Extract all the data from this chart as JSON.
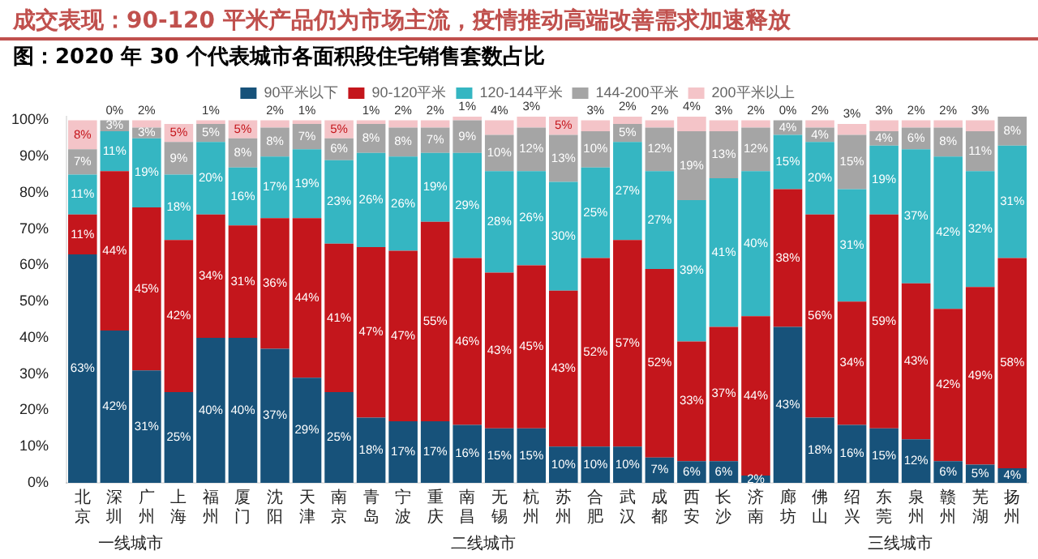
{
  "chart_data": {
    "type": "bar",
    "stacked": true,
    "title": "成交表现：90-120 平米产品仍为市场主流，疫情推动高端改善需求加速释放",
    "subtitle": "图：2020 年 30 个代表城市各面积段住宅销售套数占比",
    "categories": [
      "北京",
      "深圳",
      "广州",
      "上海",
      "福州",
      "厦门",
      "沈阳",
      "天津",
      "南京",
      "青岛",
      "宁波",
      "重庆",
      "南昌",
      "无锡",
      "杭州",
      "苏州",
      "合肥",
      "武汉",
      "成都",
      "西安",
      "长沙",
      "济南",
      "廊坊",
      "佛山",
      "绍兴",
      "东莞",
      "泉州",
      "赣州",
      "芜湖",
      "扬州"
    ],
    "series": [
      {
        "name": "90平米以下",
        "color": "#17527a",
        "values": [
          63,
          42,
          31,
          25,
          40,
          40,
          37,
          29,
          25,
          18,
          17,
          17,
          16,
          15,
          15,
          10,
          10,
          10,
          7,
          6,
          6,
          2,
          43,
          18,
          16,
          15,
          12,
          6,
          5,
          4
        ],
        "value_labels": [
          "63%",
          "42%",
          "31%",
          "25%",
          "40%",
          "40%",
          "37%",
          "29%",
          "25%",
          "18%",
          "17%",
          "17%",
          "16%",
          "15%",
          "15%",
          "10%",
          "10%",
          "10%",
          "7%",
          "6%",
          "6%",
          "2%",
          "43%",
          "18%",
          "16%",
          "15%",
          "12%",
          "6%",
          "5%",
          "4%"
        ]
      },
      {
        "name": "90-120平米",
        "color": "#c4161c",
        "values": [
          11,
          44,
          45,
          42,
          34,
          31,
          36,
          44,
          41,
          47,
          47,
          55,
          46,
          43,
          45,
          43,
          52,
          57,
          52,
          33,
          37,
          44,
          38,
          56,
          34,
          59,
          43,
          42,
          49,
          58
        ],
        "value_labels": [
          "11%",
          "44%",
          "45%",
          "42%",
          "34%",
          "31%",
          "36%",
          "44%",
          "41%",
          "47%",
          "47%",
          "55%",
          "46%",
          "43%",
          "45%",
          "43%",
          "52%",
          "57%",
          "52%",
          "33%",
          "37%",
          "44%",
          "38%",
          "56%",
          "34%",
          "59%",
          "43%",
          "42%",
          "49%",
          "58%"
        ]
      },
      {
        "name": "120-144平米",
        "color": "#35b6c2",
        "values": [
          11,
          11,
          19,
          18,
          20,
          16,
          17,
          19,
          23,
          26,
          26,
          19,
          29,
          28,
          26,
          30,
          25,
          27,
          27,
          39,
          41,
          40,
          15,
          20,
          31,
          19,
          37,
          42,
          32,
          31
        ],
        "value_labels": [
          "11%",
          "11%",
          "19%",
          "18%",
          "20%",
          "16%",
          "17%",
          "19%",
          "23%",
          "26%",
          "26%",
          "19%",
          "29%",
          "28%",
          "26%",
          "30%",
          "25%",
          "27%",
          "27%",
          "39%",
          "41%",
          "40%",
          "15%",
          "20%",
          "31%",
          "19%",
          "37%",
          "42%",
          "32%",
          "31%"
        ]
      },
      {
        "name": "144-200平米",
        "color": "#a5a5a5",
        "values": [
          7,
          3,
          3,
          9,
          5,
          8,
          8,
          7,
          6,
          8,
          8,
          7,
          9,
          10,
          12,
          13,
          10,
          5,
          12,
          19,
          13,
          12,
          4,
          4,
          15,
          4,
          6,
          8,
          11,
          8
        ],
        "value_labels": [
          "7%",
          "3%",
          "3%",
          "9%",
          "5%",
          "8%",
          "8%",
          "7%",
          "6%",
          "8%",
          "8%",
          "7%",
          "9%",
          "10%",
          "12%",
          "13%",
          "10%",
          "5%",
          "12%",
          "19%",
          "13%",
          "12%",
          "4%",
          "4%",
          "15%",
          "4%",
          "6%",
          "8%",
          "11%",
          "8%"
        ]
      },
      {
        "name": "200平米以上",
        "color": "#f4c4c8",
        "values": [
          8,
          0,
          2,
          5,
          1,
          5,
          2,
          1,
          5,
          1,
          2,
          2,
          1,
          4,
          3,
          5,
          3,
          2,
          2,
          4,
          3,
          2,
          0,
          2,
          3,
          3,
          2,
          2,
          3,
          0
        ],
        "value_labels": [
          "8%",
          "0%",
          "2%",
          "5%",
          "1%",
          "5%",
          "2%",
          "1%",
          "5%",
          "1%",
          "2%",
          "2%",
          "1%",
          "4%",
          "3%",
          "5%",
          "3%",
          "2%",
          "2%",
          "4%",
          "3%",
          "2%",
          "0%",
          "2%",
          "3%",
          "3%",
          "2%",
          "2%",
          "3%",
          null
        ]
      }
    ],
    "ylim": [
      0,
      101
    ],
    "yticks": [
      {
        "value": 0,
        "label": "0%"
      },
      {
        "value": 10,
        "label": "10%"
      },
      {
        "value": 20,
        "label": "20%"
      },
      {
        "value": 30,
        "label": "30%"
      },
      {
        "value": 40,
        "label": "40%"
      },
      {
        "value": 50,
        "label": "50%"
      },
      {
        "value": 60,
        "label": "60%"
      },
      {
        "value": 70,
        "label": "70%"
      },
      {
        "value": 80,
        "label": "80%"
      },
      {
        "value": 90,
        "label": "90%"
      },
      {
        "value": 100,
        "label": "100%"
      }
    ],
    "grid": false,
    "legend": "top",
    "annotations": [
      "一线城市",
      "二线城市",
      "三线城市"
    ]
  }
}
